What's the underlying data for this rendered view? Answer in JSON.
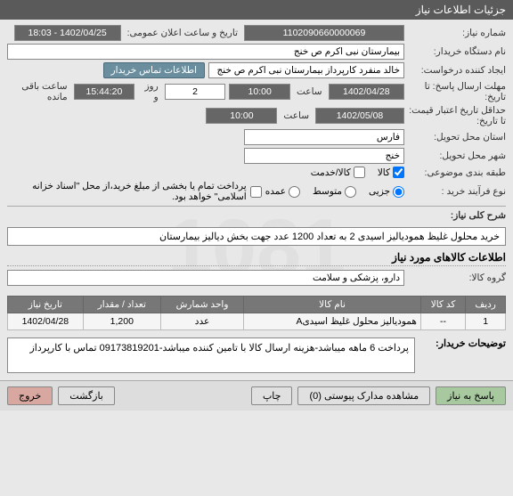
{
  "header": {
    "title": "جزئیات اطلاعات نیاز"
  },
  "watermark": "1081",
  "form": {
    "need_no_label": "شماره نیاز:",
    "need_no": "1102090660000069",
    "announce_label": "تاریخ و ساعت اعلان عمومی:",
    "announce": "1402/04/25 - 18:03",
    "buyer_label": "نام دستگاه خریدار:",
    "buyer": "بیمارستان نبی اکرم  ص  خنج",
    "creator_label": "ایجاد کننده درخواست:",
    "creator": "خالد منفرد کارپرداز بیمارستان نبی اکرم  ص  خنج",
    "contact_btn": "اطلاعات تماس خریدار",
    "deadline_label": "مهلت ارسال پاسخ: تا تاریخ:",
    "deadline_date": "1402/04/28",
    "deadline_time": "10:00",
    "days": "2",
    "remain_time": "15:44:20",
    "remain_txt": "ساعت باقی مانده",
    "saat": "ساعت",
    "rooz": "روز و",
    "valid_label": "حداقل تاریخ اعتبار قیمت: تا تاریخ:",
    "valid_date": "1402/05/08",
    "valid_time": "10:00",
    "province_label": "استان محل تحویل:",
    "province": "فارس",
    "city_label": "شهر محل تحویل:",
    "city": "خنج",
    "cat_label": "طبقه بندی موضوعی:",
    "cat_kala": "کالا",
    "cat_khadamat": "کالا/خدمت",
    "buytype_label": "نوع فرآیند خرید :",
    "opt_jozi": "جزیی",
    "opt_moto": "متوسط",
    "opt_omde": "عمده",
    "pay_note": "پرداخت تمام یا بخشی از مبلغ خرید،از محل \"اسناد خزانه اسلامی\" خواهد بود.",
    "sharh_label": "شرح کلی نیاز:",
    "sharh": "خرید محلول غلیظ همودیالیز اسیدی 2 به تعداد 1200 عدد جهت بخش دیالیز بیمارستان"
  },
  "section2": {
    "title": "اطلاعات کالاهای مورد نیاز",
    "group_label": "گروه کالا:",
    "group": "دارو، پزشکی و سلامت"
  },
  "table": {
    "headers": [
      "ردیف",
      "کد کالا",
      "نام کالا",
      "واحد شمارش",
      "تعداد / مقدار",
      "تاریخ نیاز"
    ],
    "rows": [
      [
        "1",
        "--",
        "همودیالیز محلول غلیظ اسیدیA",
        "عدد",
        "1,200",
        "1402/04/28"
      ]
    ]
  },
  "note": {
    "label": "توضیحات خریدار:",
    "text": "پرداخت 6 ماهه میباشد-هزینه ارسال کالا با تامین کننده میباشد-09173819201 تماس با کارپرداز"
  },
  "footer": {
    "respond": "پاسخ به نیاز",
    "attach": "مشاهده مدارک پیوستی (0)",
    "print": "چاپ",
    "back": "بازگشت",
    "exit": "خروج"
  }
}
